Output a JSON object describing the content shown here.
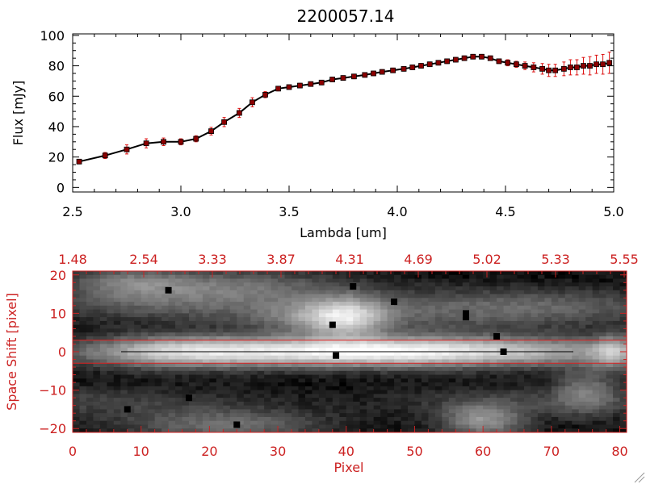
{
  "chart_data": [
    {
      "type": "line",
      "title": "2200057.14",
      "xlabel": "Lambda [um]",
      "ylabel": "Flux [mJy]",
      "xlim": [
        2.5,
        5.0
      ],
      "ylim": [
        -3,
        101
      ],
      "x_ticks": [
        "2.5",
        "3.0",
        "3.5",
        "4.0",
        "4.5",
        "5.0"
      ],
      "y_ticks": [
        "0",
        "20",
        "40",
        "60",
        "80",
        "100"
      ],
      "colors": {
        "line": "#000000",
        "marker": "#8b0000",
        "error": "#dd1111"
      },
      "x": [
        2.53,
        2.65,
        2.75,
        2.84,
        2.92,
        3.0,
        3.07,
        3.14,
        3.2,
        3.27,
        3.33,
        3.39,
        3.45,
        3.5,
        3.55,
        3.6,
        3.65,
        3.7,
        3.75,
        3.8,
        3.85,
        3.89,
        3.93,
        3.98,
        4.03,
        4.07,
        4.11,
        4.15,
        4.19,
        4.23,
        4.27,
        4.31,
        4.35,
        4.39,
        4.43,
        4.47,
        4.51,
        4.55,
        4.59,
        4.63,
        4.67,
        4.7,
        4.73,
        4.77,
        4.8,
        4.83,
        4.86,
        4.89,
        4.92,
        4.95,
        4.98
      ],
      "y": [
        17,
        21,
        25,
        29,
        30,
        30,
        32,
        37,
        43,
        49,
        56,
        61,
        65,
        66,
        67,
        68,
        69,
        71,
        72,
        73,
        74,
        75,
        76,
        77,
        78,
        79,
        80,
        81,
        82,
        83,
        84,
        85,
        86,
        86,
        85,
        83,
        82,
        81,
        80,
        79,
        78,
        77,
        77,
        78,
        79,
        79,
        80,
        80,
        81,
        81,
        82
      ],
      "err": [
        1.5,
        2,
        3,
        3,
        2.5,
        2,
        2,
        2.5,
        3,
        3,
        3,
        2,
        1.5,
        1.5,
        1.5,
        1.5,
        1.5,
        1.5,
        1.5,
        1.5,
        1.5,
        1.5,
        1.5,
        1.5,
        1.5,
        1.5,
        1.5,
        1.5,
        1.5,
        1.5,
        1.5,
        1.5,
        1.5,
        1.5,
        1.5,
        1.5,
        2,
        2,
        2.5,
        3,
        3.5,
        4,
        4,
        4.5,
        5,
        5,
        5.5,
        6,
        6,
        6.5,
        7
      ]
    },
    {
      "type": "heatmap",
      "xlabel": "Pixel",
      "ylabel": "Space Shift [pixel]",
      "xlim": [
        0,
        81
      ],
      "ylim": [
        -21,
        21
      ],
      "x_ticks": [
        "0",
        "10",
        "20",
        "30",
        "40",
        "50",
        "60",
        "70",
        "80"
      ],
      "y_ticks": [
        "-20",
        "-10",
        "0",
        "10",
        "20"
      ],
      "top_ticks": [
        "1.48",
        "2.54",
        "3.33",
        "3.87",
        "4.31",
        "4.69",
        "5.02",
        "5.33",
        "5.55"
      ],
      "extraction_window": [
        -3,
        3
      ],
      "colors": {
        "axis": "#cc2222",
        "window": "#dd2222",
        "trace": "#000000"
      },
      "bright_features": [
        {
          "x": 44,
          "y": 0,
          "sx": 24,
          "sy": 2.6,
          "amp": 1.0
        },
        {
          "x": 15,
          "y": 0,
          "sx": 8,
          "sy": 2.8,
          "amp": 0.35
        },
        {
          "x": 40,
          "y": 9,
          "sx": 4,
          "sy": 3.5,
          "amp": 0.55
        },
        {
          "x": 35,
          "y": 9,
          "sx": 6,
          "sy": 3,
          "amp": 0.25
        },
        {
          "x": 50,
          "y": 10,
          "sx": 18,
          "sy": 4,
          "amp": 0.2
        },
        {
          "x": 22,
          "y": 17,
          "sx": 12,
          "sy": 3,
          "amp": 0.3
        },
        {
          "x": 8,
          "y": 18,
          "sx": 6,
          "sy": 3,
          "amp": 0.25
        },
        {
          "x": 60,
          "y": -18,
          "sx": 4,
          "sy": 3,
          "amp": 0.45
        },
        {
          "x": 22,
          "y": -19,
          "sx": 10,
          "sy": 3,
          "amp": 0.3
        },
        {
          "x": 75,
          "y": -10,
          "sx": 3,
          "sy": 4,
          "amp": 0.3
        },
        {
          "x": 79,
          "y": 0,
          "sx": 2,
          "sy": 3,
          "amp": 0.4
        }
      ],
      "dark_pixels": [
        {
          "x": 14,
          "y": 16
        },
        {
          "x": 38,
          "y": 7
        },
        {
          "x": 38.5,
          "y": -1
        },
        {
          "x": 41,
          "y": 17
        },
        {
          "x": 47,
          "y": 13
        },
        {
          "x": 57.5,
          "y": 10
        },
        {
          "x": 57.5,
          "y": 9
        },
        {
          "x": 62,
          "y": 4
        },
        {
          "x": 63,
          "y": 0
        },
        {
          "x": 24,
          "y": -19
        },
        {
          "x": 8,
          "y": -15
        },
        {
          "x": 17,
          "y": -12
        }
      ]
    }
  ]
}
